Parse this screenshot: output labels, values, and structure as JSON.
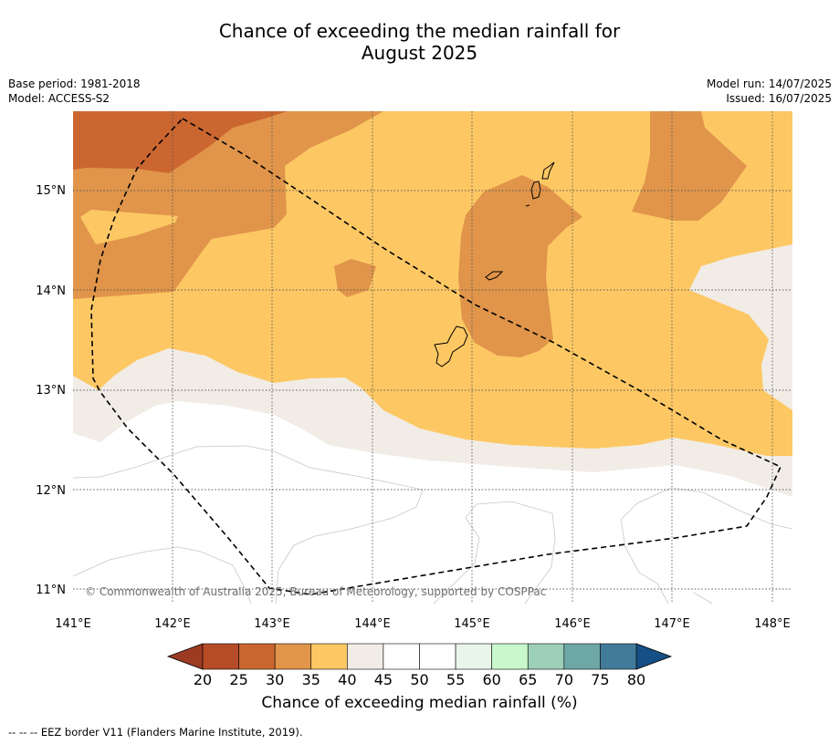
{
  "title_line1": "Chance of exceeding the median rainfall for",
  "title_line2": "August 2025",
  "base_period": "Base period: 1981-2018",
  "model": "Model: ACCESS-S2",
  "model_run": "Model run: 14/07/2025",
  "issued": "Issued: 16/07/2025",
  "copyright": "© Commonwealth of Australia 2025, Bureau of Meteorology, supported by COSPPac",
  "lat_labels": [
    "15°N",
    "14°N",
    "13°N",
    "12°N",
    "11°N"
  ],
  "lon_labels": [
    "141°E",
    "142°E",
    "143°E",
    "144°E",
    "145°E",
    "146°E",
    "147°E",
    "148°E"
  ],
  "colorbar": {
    "title": "Chance of exceeding median rainfall (%)",
    "ticks": [
      "20",
      "25",
      "30",
      "35",
      "40",
      "45",
      "50",
      "55",
      "60",
      "65",
      "70",
      "75",
      "80"
    ],
    "colors": [
      "#b54b27",
      "#cb6631",
      "#e0954a",
      "#fdc864",
      "#f1ece6",
      "#ffffff",
      "#ffffff",
      "#e9f5e9",
      "#c9f8cc",
      "#9ecfb8",
      "#6da7a6",
      "#427b99"
    ],
    "under_color": "#9c3a22",
    "over_color": "#164f85"
  },
  "footnote": "--  --  -- EEZ border V11 (Flanders Marine Institute, 2019).",
  "colors": {
    "band_20_25": "#b54b27",
    "band_25_30": "#cb6631",
    "band_30_35": "#e0954a",
    "band_35_40": "#fdc864",
    "band_40_45": "#f1ece6",
    "band_45_55": "#ffffff"
  }
}
